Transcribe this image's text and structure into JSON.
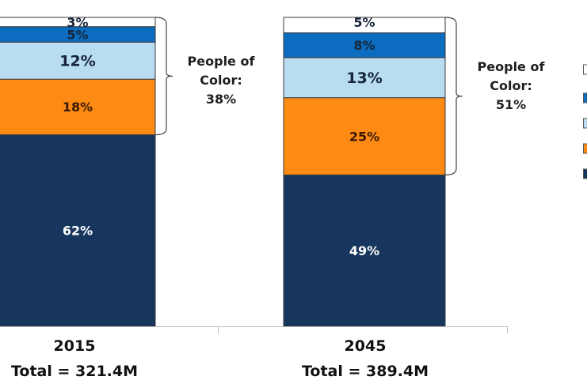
{
  "chart_data": {
    "type": "bar",
    "stacked": true,
    "normalized": true,
    "title": "",
    "xlabel": "",
    "ylabel": "",
    "ylim": [
      0,
      100
    ],
    "grid": false,
    "legend_position": "right",
    "categories": [
      "2015",
      "2045"
    ],
    "category_subtitles": [
      "Total = 321.4M",
      "Total = 389.4M"
    ],
    "series": [
      {
        "name": "",
        "color": "#17365d",
        "label_color": "#ffffff",
        "values": [
          62,
          49
        ],
        "labels": [
          "62%",
          "49%"
        ]
      },
      {
        "name": "",
        "color": "#fd8a12",
        "label_color": "#3a1a05",
        "values": [
          18,
          25
        ],
        "labels": [
          "18%",
          "25%"
        ]
      },
      {
        "name": "",
        "color": "#b8dcf0",
        "label_color": "#17263a",
        "values": [
          12,
          13
        ],
        "labels": [
          "12%",
          "13%"
        ]
      },
      {
        "name": "",
        "color": "#0b6cc0",
        "label_color": "#17263a",
        "values": [
          5,
          8
        ],
        "labels": [
          "5%",
          "8%"
        ]
      },
      {
        "name": "",
        "color": "#ffffff",
        "label_color": "#17263a",
        "values": [
          3,
          5
        ],
        "labels": [
          "3%",
          "5%"
        ]
      }
    ],
    "annotations": [
      {
        "category": "2015",
        "text_lines": [
          "People of",
          "Color:",
          "38%"
        ],
        "value": 38,
        "spans_series": [
          1,
          2,
          3,
          4
        ]
      },
      {
        "category": "2045",
        "text_lines": [
          "People of",
          "Color:",
          "51%"
        ],
        "value": 51,
        "spans_series": [
          1,
          2,
          3,
          4
        ]
      }
    ]
  }
}
